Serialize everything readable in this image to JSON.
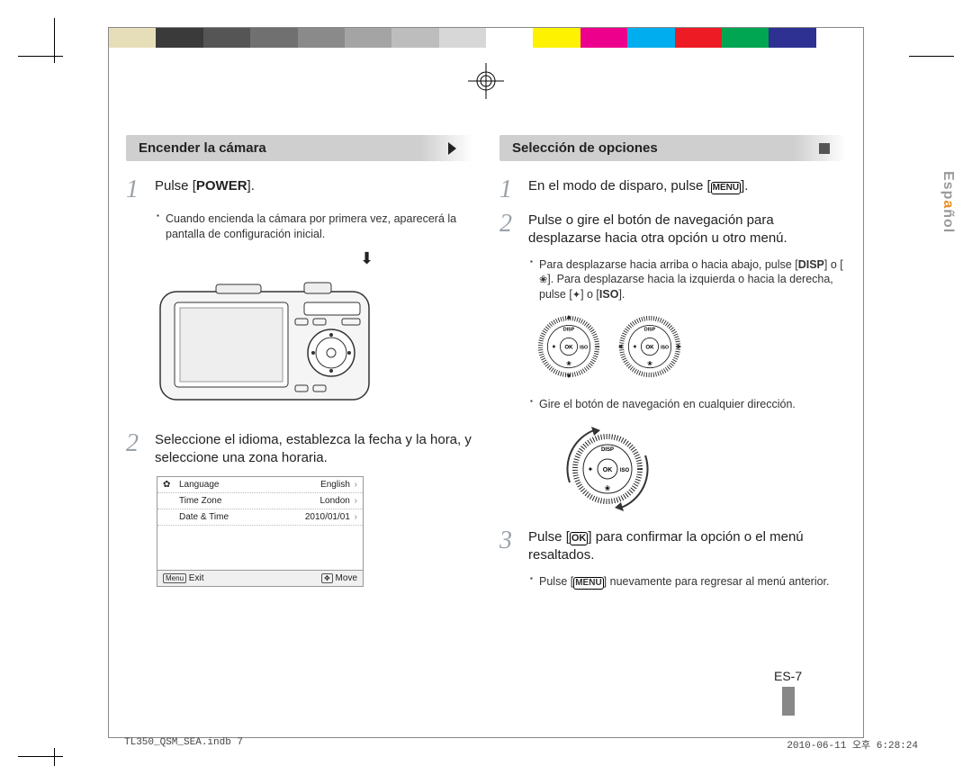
{
  "colorbar": [
    "#e6deb8",
    "#3a3a3a",
    "#555555",
    "#707070",
    "#8a8a8a",
    "#a4a4a4",
    "#bdbdbd",
    "#d7d7d7",
    "#ffffff",
    "#fff200",
    "#ec008c",
    "#00adee",
    "#ed1c24",
    "#00a651",
    "#2e3192",
    "#ffffff"
  ],
  "side_tab": {
    "pre": "Esp",
    "hl": "a",
    "post": "ñol"
  },
  "left": {
    "title": "Encender la cámara",
    "steps": {
      "1": {
        "text_pre": "Pulse [",
        "bold": "POWER",
        "text_post": "]."
      },
      "1_bullets": [
        "Cuando encienda la cámara por primera vez, aparecerá la pantalla de configuración inicial."
      ],
      "2": {
        "text": "Seleccione el idioma, establezca la fecha y la hora, y seleccione una zona horaria."
      }
    },
    "settings": {
      "rows": [
        {
          "label": "Language",
          "value": "English"
        },
        {
          "label": "Time Zone",
          "value": "London"
        },
        {
          "label": "Date & Time",
          "value": "2010/01/01"
        }
      ],
      "footer_left_key": "Menu",
      "footer_left": "Exit",
      "footer_right_key": "✥",
      "footer_right": "Move"
    }
  },
  "right": {
    "title": "Selección de opciones",
    "steps": {
      "1": {
        "pre": "En el modo de disparo, pulse [",
        "btn": "MENU",
        "post": "]."
      },
      "2": {
        "text": "Pulse o gire el botón de navegación para desplazarse hacia otra opción u otro menú."
      },
      "2_bullets": [
        {
          "pre": "Para desplazarse hacia arriba o hacia abajo, pulse [",
          "b1": "DISP",
          "mid": "] o [",
          "icon": "❀",
          "mid2": "]. Para desplazarse hacia la izquierda o hacia la derecha, pulse [",
          "b2": "✦",
          "mid3": "] o [",
          "b3": "ISO",
          "post": "]."
        }
      ],
      "2_bullet2": "Gire el botón de navegación en cualquier dirección.",
      "3": {
        "pre": "Pulse [",
        "btn": "OK",
        "post": "] para confirmar la opción o el menú resaltados."
      },
      "3_bullets": [
        {
          "pre": "Pulse [",
          "btn": "MENU",
          "post": "] nuevamente para regresar al menú anterior."
        }
      ]
    },
    "dial_labels": {
      "top": "DISP",
      "left": "✦",
      "center": "OK",
      "right": "ISO",
      "bottom": "❀"
    }
  },
  "page_num": "ES-7",
  "footer": {
    "left": "TL350_QSM_SEA.indb   7",
    "right": "2010-06-11   오후 6:28:24"
  }
}
